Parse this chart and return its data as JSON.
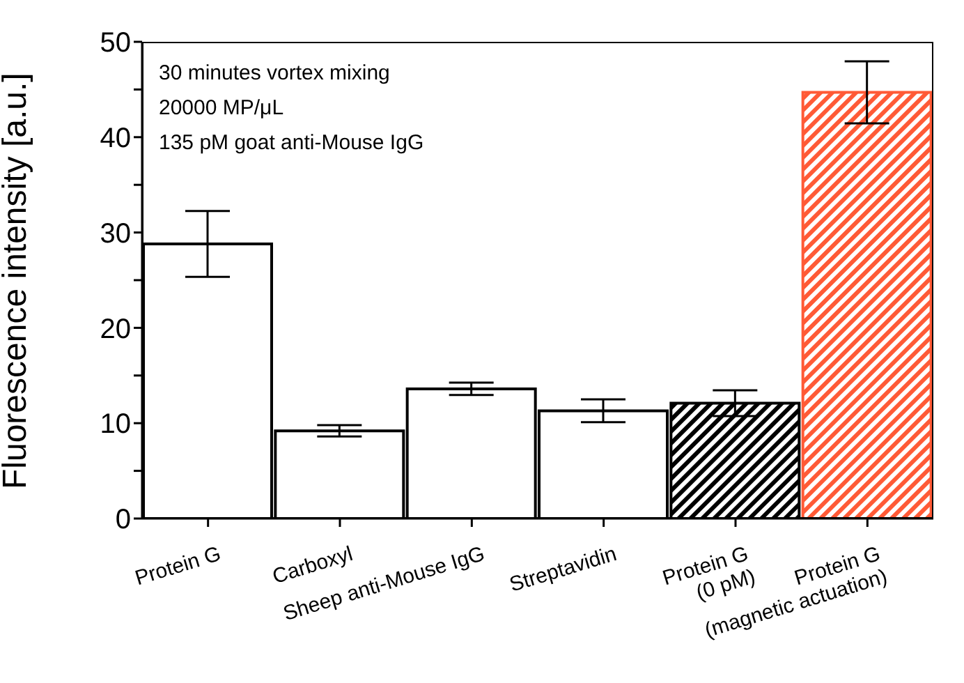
{
  "chart_data": {
    "type": "bar",
    "ylabel": "Fluorescence intensity [a.u.]",
    "categories": [
      "Protein G",
      "Carboxyl",
      "Sheep anti-Mouse IgG",
      "Streptavidin",
      "Protein G\n(0 pM)",
      "Protein G\n(magnetic actuation)"
    ],
    "values": [
      28.8,
      9.2,
      13.6,
      11.3,
      12.1,
      44.7
    ],
    "errors": [
      3.45,
      0.6,
      0.65,
      1.2,
      1.35,
      3.25
    ],
    "colors": [
      "#ffffff",
      "#ffffff",
      "#ffffff",
      "#ffffff",
      "#000000",
      "#ff5a36"
    ],
    "ylim": [
      0,
      50
    ],
    "yticks": [
      0,
      {
        "value": 5,
        "label": null
      },
      10,
      {
        "value": 15,
        "label": null
      },
      20,
      {
        "value": 25,
        "label": null
      },
      30,
      {
        "value": 35,
        "label": null
      },
      40,
      {
        "value": 45,
        "label": null
      },
      50
    ],
    "annotations": [
      "30 minutes vortex mixing",
      "20000 MP/μL",
      "135 pM goat anti-Mouse IgG"
    ]
  }
}
